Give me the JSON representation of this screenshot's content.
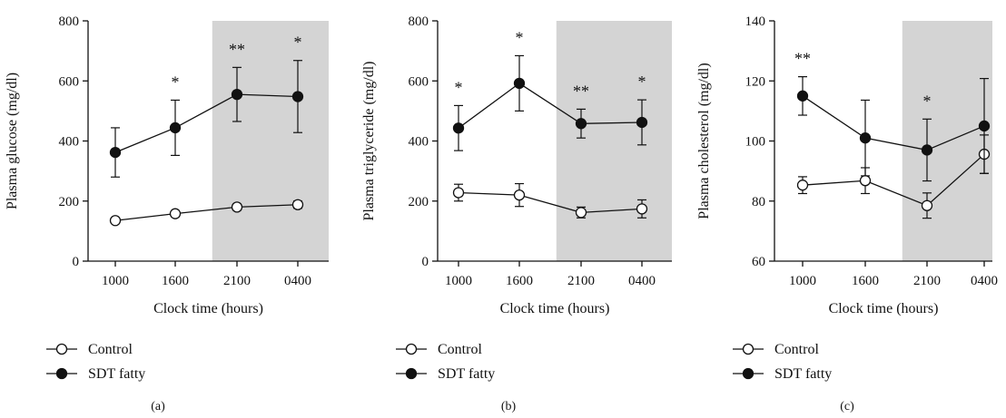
{
  "colors": {
    "shade": "#d4d4d4",
    "control_fill": "#ffffff",
    "sdt_fill": "#111111",
    "stroke": "#111111"
  },
  "chart_data": [
    {
      "type": "line",
      "panel_label": "(a)",
      "xlabel": "Clock time (hours)",
      "ylabel": "Plasma glucose (mg/dl)",
      "categories": [
        "1000",
        "1600",
        "2100",
        "0400"
      ],
      "ylim": [
        0,
        800
      ],
      "yticks": [
        0,
        200,
        400,
        600,
        800
      ],
      "shaded_from_category_index": 1.5,
      "series": [
        {
          "name": "Control",
          "marker": "open-circle",
          "values": [
            135,
            158,
            180,
            188
          ],
          "errors": [
            8,
            10,
            10,
            12
          ]
        },
        {
          "name": "SDT fatty",
          "marker": "filled-circle",
          "values": [
            362,
            444,
            555,
            548
          ],
          "errors": [
            82,
            92,
            90,
            120
          ]
        }
      ],
      "significance": [
        "",
        "*",
        "**",
        "*"
      ]
    },
    {
      "type": "line",
      "panel_label": "(b)",
      "xlabel": "Clock time (hours)",
      "ylabel": "Plasma triglyceride (mg/dl)",
      "categories": [
        "1000",
        "1600",
        "2100",
        "0400"
      ],
      "ylim": [
        0,
        800
      ],
      "yticks": [
        0,
        200,
        400,
        600,
        800
      ],
      "shaded_from_category_index": 1.5,
      "series": [
        {
          "name": "Control",
          "marker": "open-circle",
          "values": [
            228,
            220,
            162,
            174
          ],
          "errors": [
            28,
            38,
            18,
            30
          ]
        },
        {
          "name": "SDT fatty",
          "marker": "filled-circle",
          "values": [
            443,
            592,
            458,
            462
          ],
          "errors": [
            75,
            92,
            48,
            75
          ]
        }
      ],
      "significance": [
        "*",
        "*",
        "**",
        "*"
      ]
    },
    {
      "type": "line",
      "panel_label": "(c)",
      "xlabel": "Clock time (hours)",
      "ylabel": "Plasma cholesterol (mg/dl)",
      "categories": [
        "1000",
        "1600",
        "2100",
        "0400"
      ],
      "ylim": [
        60,
        140
      ],
      "yticks": [
        60,
        80,
        100,
        120,
        140
      ],
      "shaded_from_category_index": 1.5,
      "series": [
        {
          "name": "Control",
          "marker": "open-circle",
          "values": [
            85.3,
            86.8,
            78.5,
            95.6
          ],
          "errors": [
            2.8,
            4.3,
            4.2,
            6.4
          ]
        },
        {
          "name": "SDT fatty",
          "marker": "filled-circle",
          "values": [
            115,
            101,
            97,
            105
          ],
          "errors": [
            6.4,
            12.6,
            10.3,
            15.8
          ]
        }
      ],
      "significance": [
        "**",
        "",
        "*",
        ""
      ]
    }
  ]
}
